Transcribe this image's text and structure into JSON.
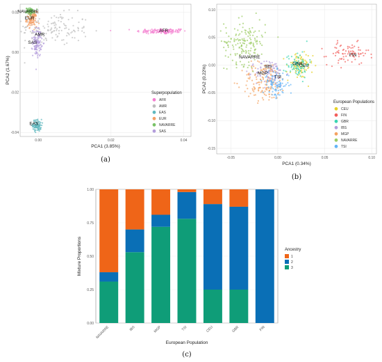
{
  "chart_data": [
    {
      "type": "scatter",
      "panel_label": "(a)",
      "xlabel": "PCA1 (3.85%)",
      "ylabel": "PCA2 (1.67%)",
      "xlim": [
        -0.005,
        0.042
      ],
      "ylim": [
        -0.042,
        0.024
      ],
      "xticks": [
        {
          "v": 0.0,
          "label": "0.00"
        },
        {
          "v": 0.02,
          "label": "0.02"
        },
        {
          "v": 0.04,
          "label": "0.04"
        }
      ],
      "yticks": [
        {
          "v": 0.02,
          "label": "0.02"
        },
        {
          "v": 0.0,
          "label": "0.00"
        },
        {
          "v": -0.02,
          "label": "-0.02"
        },
        {
          "v": -0.04,
          "label": "-0.04"
        }
      ],
      "grid": true,
      "legend": {
        "title": "Superpopulation",
        "placement": "right"
      },
      "series": [
        {
          "name": "AFR",
          "color": "#f47fd0",
          "center": [
            0.034,
            0.0105
          ],
          "spread": [
            0.0035,
            0.0007
          ],
          "n": 130,
          "label": "AFR"
        },
        {
          "name": "AMR",
          "color": "#bdbdbd",
          "center": [
            0.004,
            0.0115
          ],
          "spread": [
            0.005,
            0.004
          ],
          "n": 140,
          "label": "AMR"
        },
        {
          "name": "EAS",
          "color": "#5fb8bf",
          "center": [
            -0.0003,
            -0.0365
          ],
          "spread": [
            0.0006,
            0.0015
          ],
          "n": 90,
          "label": "EAS"
        },
        {
          "name": "EUR",
          "color": "#f4a066",
          "center": [
            -0.0018,
            0.0165
          ],
          "spread": [
            0.0007,
            0.0018
          ],
          "n": 110,
          "label": "EUR"
        },
        {
          "name": "NAVARRE",
          "color": "#79c267",
          "center": [
            -0.0022,
            0.0205
          ],
          "spread": [
            0.0006,
            0.0008
          ],
          "n": 80,
          "label": "NAVARRE"
        },
        {
          "name": "SAS",
          "color": "#b39ddb",
          "center": [
            -0.0003,
            0.005
          ],
          "spread": [
            0.0006,
            0.0035
          ],
          "n": 110,
          "label": "SAS"
        }
      ]
    },
    {
      "type": "scatter",
      "panel_label": "(b)",
      "xlabel": "PCA1 (0.34%)",
      "ylabel": "PCA2 (0.22%)",
      "xlim": [
        -0.065,
        0.105
      ],
      "ylim": [
        -0.16,
        0.11
      ],
      "xticks": [
        {
          "v": -0.05,
          "label": "-0.05"
        },
        {
          "v": 0.0,
          "label": "0.00"
        },
        {
          "v": 0.05,
          "label": "0.05"
        },
        {
          "v": 0.1,
          "label": "0.10"
        }
      ],
      "yticks": [
        {
          "v": 0.1,
          "label": "0.10"
        },
        {
          "v": 0.05,
          "label": "0.05"
        },
        {
          "v": 0.0,
          "label": "0.00"
        },
        {
          "v": -0.05,
          "label": "-0.05"
        },
        {
          "v": -0.1,
          "label": "-0.10"
        },
        {
          "v": -0.15,
          "label": "-0.15"
        }
      ],
      "grid": true,
      "legend": {
        "title": "European Populations",
        "placement": "right"
      },
      "series": [
        {
          "name": "CEU",
          "color": "#e6d12a",
          "center": [
            0.023,
            -0.002
          ],
          "spread": [
            0.007,
            0.012
          ],
          "n": 90,
          "label": "CEU"
        },
        {
          "name": "FIN",
          "color": "#f25f5c",
          "center": [
            0.075,
            0.02
          ],
          "spread": [
            0.011,
            0.01
          ],
          "n": 80,
          "label": "FIN"
        },
        {
          "name": "GBR",
          "color": "#3ad6b3",
          "center": [
            0.021,
            0.002
          ],
          "spread": [
            0.006,
            0.012
          ],
          "n": 80,
          "label": "GBR"
        },
        {
          "name": "IBS",
          "color": "#b39ddb",
          "center": [
            -0.008,
            -0.014
          ],
          "spread": [
            0.008,
            0.012
          ],
          "n": 90,
          "label": "IBS"
        },
        {
          "name": "MGP",
          "color": "#f4a261",
          "center": [
            -0.014,
            -0.03
          ],
          "spread": [
            0.012,
            0.018
          ],
          "n": 150,
          "label": "MGP"
        },
        {
          "name": "NAVARRE",
          "color": "#9ccc65",
          "center": [
            -0.035,
            0.042
          ],
          "spread": [
            0.011,
            0.02
          ],
          "n": 160,
          "label": "NAVARRE"
        },
        {
          "name": "TSI",
          "color": "#64b5f6",
          "center": [
            -0.002,
            -0.035
          ],
          "spread": [
            0.007,
            0.012
          ],
          "n": 90,
          "label": "TSI"
        }
      ]
    },
    {
      "type": "bar",
      "stacked": true,
      "panel_label": "(c)",
      "xlabel": "European Population",
      "ylabel": "Mixture Proportions",
      "ylim": [
        0,
        1
      ],
      "yticks": [
        {
          "v": 0.0,
          "label": "0.00"
        },
        {
          "v": 0.25,
          "label": "0.25"
        },
        {
          "v": 0.5,
          "label": "0.50"
        },
        {
          "v": 0.75,
          "label": "0.75"
        },
        {
          "v": 1.0,
          "label": "1.00"
        }
      ],
      "categories": [
        "NAVARRE",
        "IBS",
        "MGP",
        "TSI",
        "CEU",
        "GBR",
        "FIN"
      ],
      "legend": {
        "title": "Ancestry",
        "placement": "right"
      },
      "series": [
        {
          "name": "3",
          "color": "#0f9d78",
          "values": [
            0.31,
            0.53,
            0.72,
            0.78,
            0.25,
            0.25,
            0.0
          ]
        },
        {
          "name": "2",
          "color": "#0a6fb6",
          "values": [
            0.07,
            0.17,
            0.09,
            0.2,
            0.64,
            0.62,
            1.0
          ]
        },
        {
          "name": "1",
          "color": "#ef6518",
          "values": [
            0.62,
            0.3,
            0.19,
            0.02,
            0.11,
            0.13,
            0.0
          ]
        }
      ],
      "legend_order": [
        "1",
        "2",
        "3"
      ]
    }
  ]
}
